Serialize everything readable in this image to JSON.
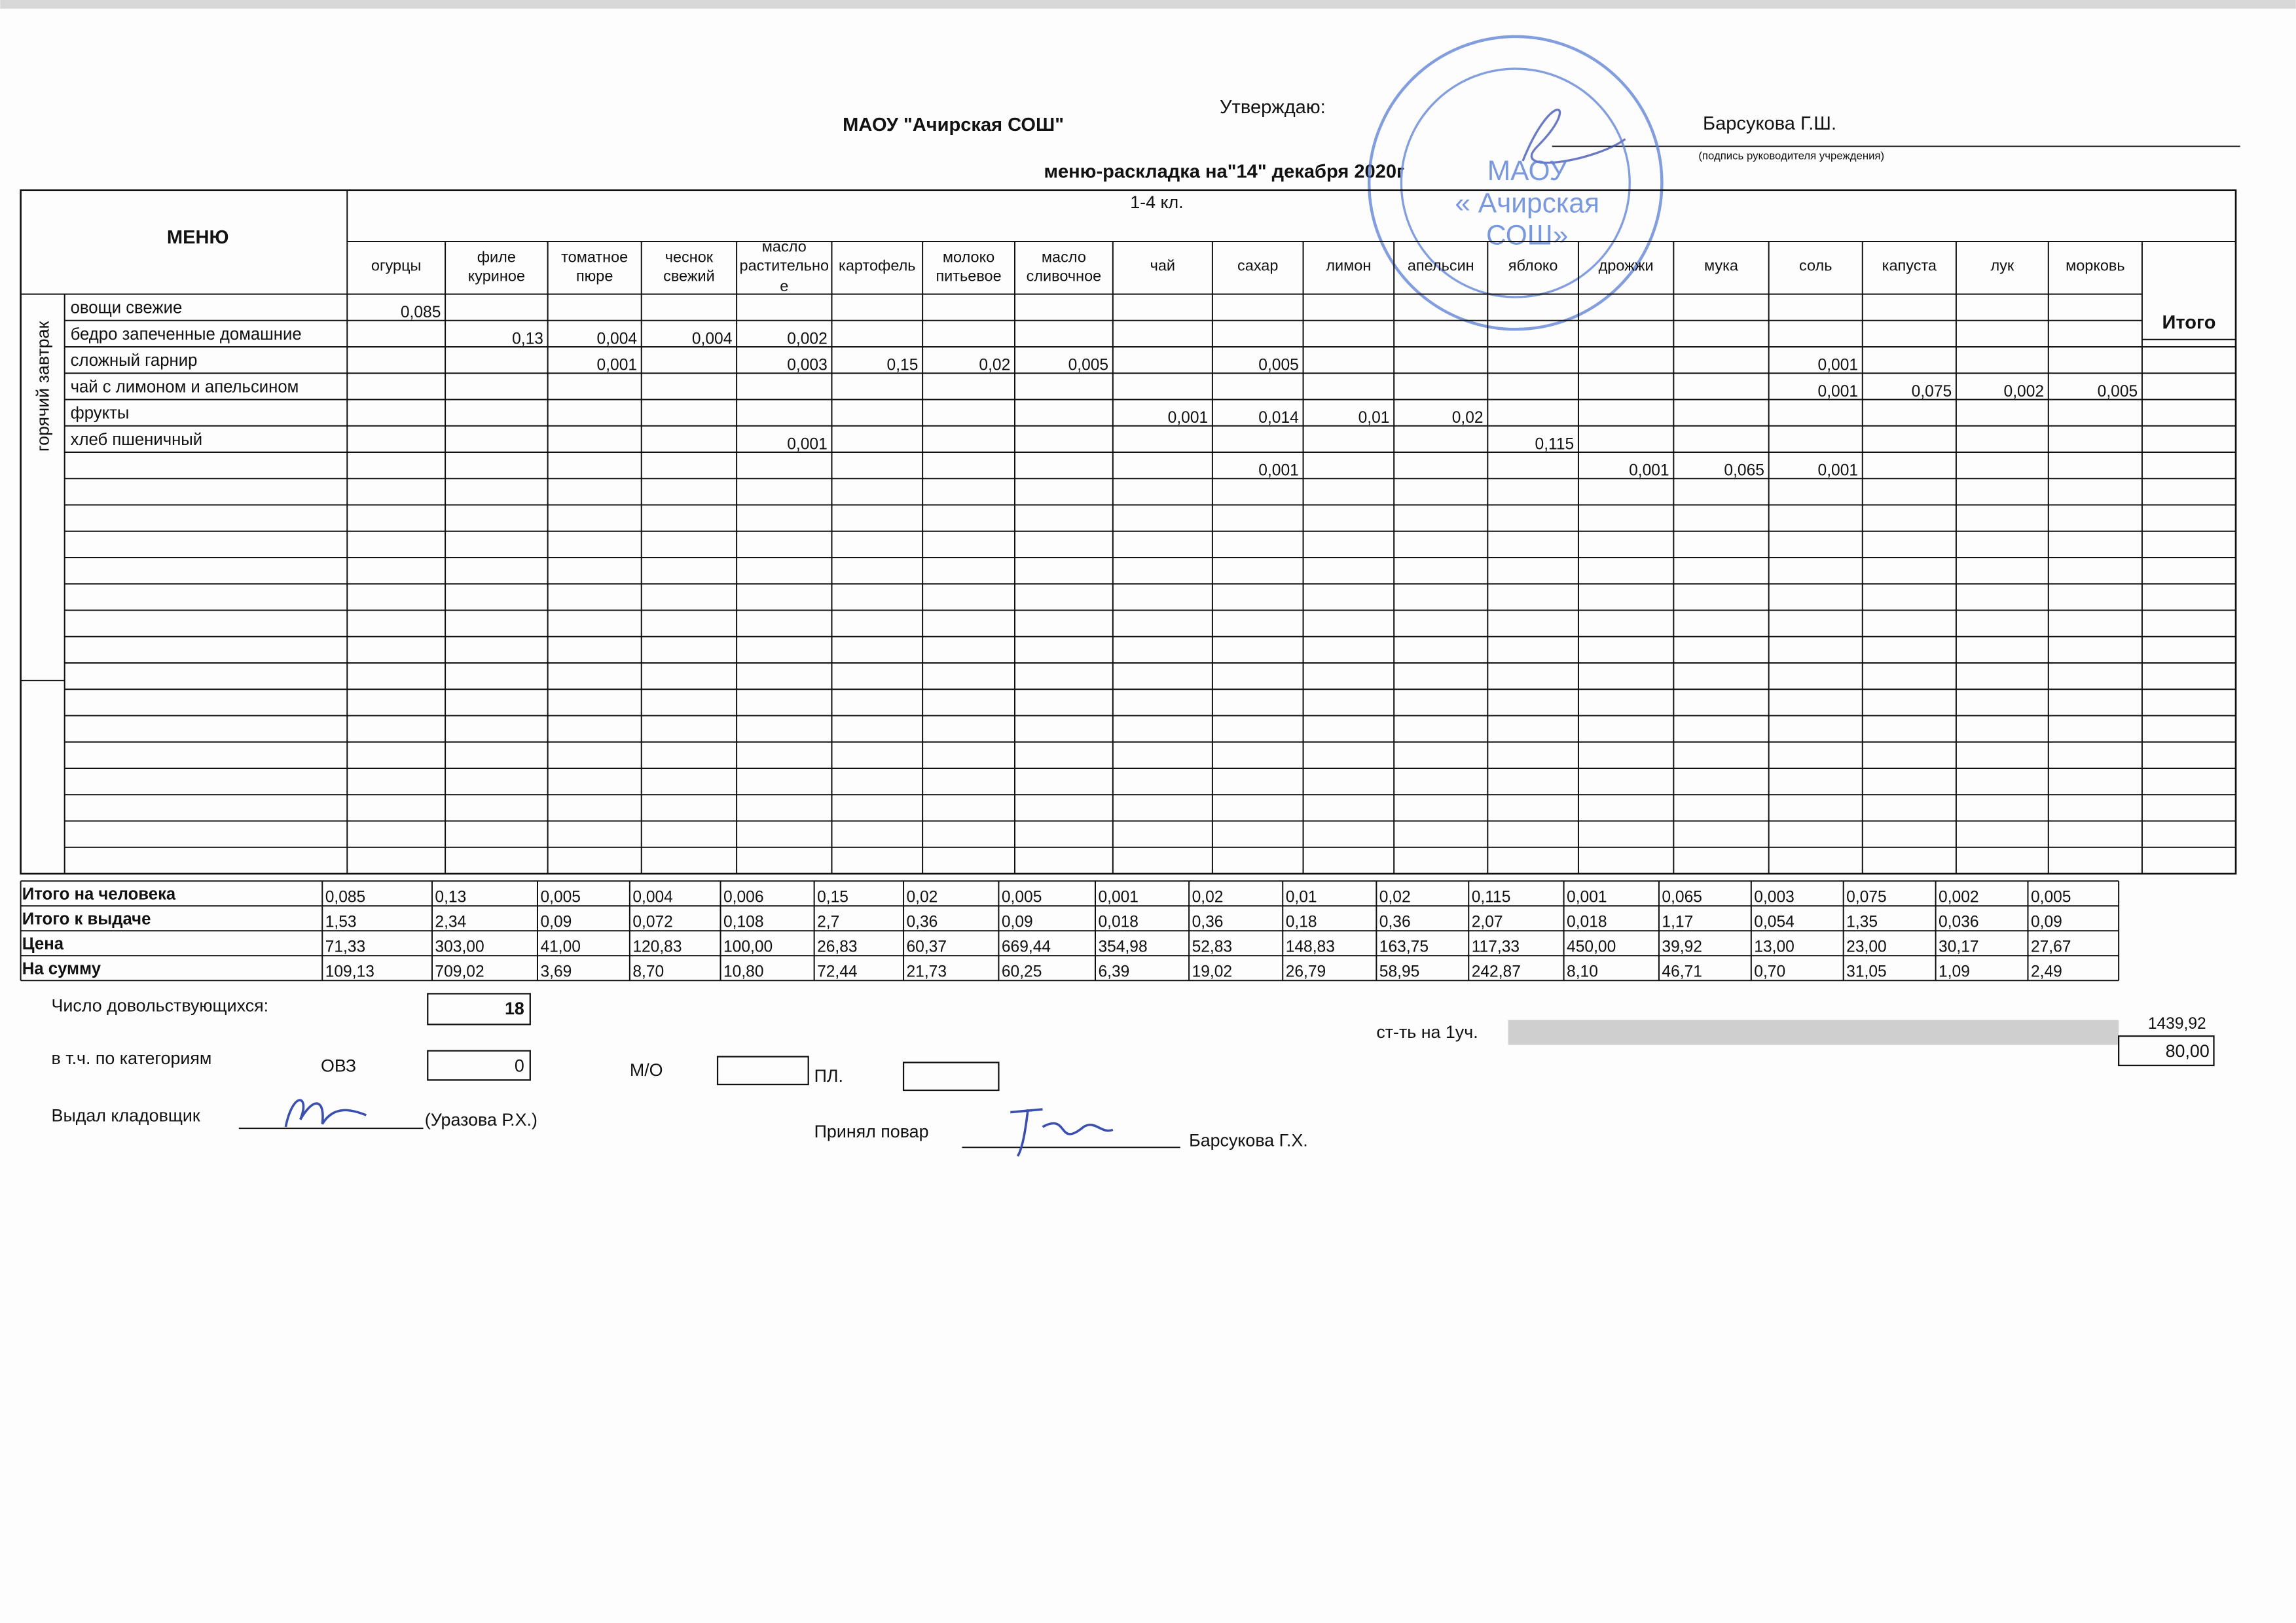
{
  "header": {
    "organization": "МАОУ \"Ачирская СОШ\"",
    "approve_label": "Утверждаю:",
    "approver": "Барсукова Г.Ш.",
    "approver_note": "(подпись руководителя учреждения)",
    "title": "меню-раскладка на\"14\" декабря 2020г",
    "grade": "1-4 кл."
  },
  "stamp": {
    "lines": [
      "МАОУ",
      "« Ачирская",
      "СОШ»"
    ]
  },
  "table": {
    "menu_header": "МЕНЮ",
    "total_header": "Итого",
    "columns": [
      "огурцы",
      "филе куриное",
      "томатное пюре",
      "чеснок свежий",
      "масло растительное",
      "картофель",
      "молоко питьевое",
      "масло сливочное",
      "чай",
      "сахар",
      "лимон",
      "апельсин",
      "яблоко",
      "дрожжи",
      "мука",
      "соль",
      "капуста",
      "лук",
      "морковь"
    ],
    "meal": "горячий завтрак",
    "rows": [
      {
        "name": "овощи свежие",
        "cells": [
          "0,085",
          null,
          null,
          null,
          null,
          null,
          null,
          null,
          null,
          null,
          null,
          null,
          null,
          null,
          null,
          null,
          null,
          null,
          null
        ]
      },
      {
        "name": "бедро запеченные домашние",
        "cells": [
          null,
          "0,13",
          "0,004",
          "0,004",
          "0,002",
          null,
          null,
          null,
          null,
          null,
          null,
          null,
          null,
          null,
          null,
          null,
          null,
          null,
          null
        ]
      },
      {
        "name": "сложный гарнир",
        "cells": [
          null,
          null,
          "0,001",
          null,
          "0,003",
          "0,15",
          "0,02",
          "0,005",
          null,
          "0,005",
          null,
          null,
          null,
          null,
          null,
          "0,001",
          null,
          null,
          null
        ]
      },
      {
        "name": "чай с лимоном и апельсином",
        "cells": [
          null,
          null,
          null,
          null,
          null,
          null,
          null,
          null,
          null,
          null,
          null,
          null,
          null,
          null,
          null,
          "0,001",
          "0,075",
          "0,002",
          "0,005"
        ]
      },
      {
        "name": "фрукты",
        "cells": [
          null,
          null,
          null,
          null,
          null,
          null,
          null,
          null,
          "0,001",
          "0,014",
          "0,01",
          "0,02",
          null,
          null,
          null,
          null,
          null,
          null,
          null
        ]
      },
      {
        "name": "хлеб пшеничный",
        "cells": [
          null,
          null,
          null,
          null,
          "0,001",
          null,
          null,
          null,
          null,
          null,
          null,
          null,
          "0,115",
          null,
          null,
          null,
          null,
          null,
          null
        ]
      },
      {
        "name": null,
        "cells": [
          null,
          null,
          null,
          null,
          null,
          null,
          null,
          null,
          null,
          "0,001",
          null,
          null,
          null,
          "0,001",
          "0,065",
          "0,001",
          null,
          null,
          null
        ]
      }
    ],
    "summary": [
      {
        "label": "Итого на человека",
        "values": [
          "0,085",
          "0,13",
          "0,005",
          "0,004",
          "0,006",
          "0,15",
          "0,02",
          "0,005",
          "0,001",
          "0,02",
          "0,01",
          "0,02",
          "0,115",
          "0,001",
          "0,065",
          "0,003",
          "0,075",
          "0,002",
          "0,005"
        ]
      },
      {
        "label": "Итого к выдаче",
        "values": [
          "1,53",
          "2,34",
          "0,09",
          "0,072",
          "0,108",
          "2,7",
          "0,36",
          "0,09",
          "0,018",
          "0,36",
          "0,18",
          "0,36",
          "2,07",
          "0,018",
          "1,17",
          "0,054",
          "1,35",
          "0,036",
          "0,09"
        ]
      },
      {
        "label": "Цена",
        "values": [
          "71,33",
          "303,00",
          "41,00",
          "120,83",
          "100,00",
          "26,83",
          "60,37",
          "669,44",
          "354,98",
          "52,83",
          "148,83",
          "163,75",
          "117,33",
          "450,00",
          "39,92",
          "13,00",
          "23,00",
          "30,17",
          "27,67"
        ]
      },
      {
        "label": "На сумму",
        "values": [
          "109,13",
          "709,02",
          "3,69",
          "8,70",
          "10,80",
          "72,44",
          "21,73",
          "60,25",
          "6,39",
          "19,02",
          "26,79",
          "58,95",
          "242,87",
          "8,10",
          "46,71",
          "0,70",
          "31,05",
          "1,09",
          "2,49"
        ]
      }
    ],
    "grand_total": "1439,92"
  },
  "footer": {
    "served_label": "Число довольствующихся:",
    "served": "18",
    "per_child_label": "ст-ть на 1уч.",
    "per_child": "80,00",
    "categories_label": "в т.ч. по категориям",
    "ovz_label": "ОВЗ",
    "ovz": "0",
    "mo_label": "М/О",
    "pl_label": "ПЛ.",
    "issued_label": "Выдал кладовщик",
    "issued_by": "(Уразова Р.Х.)",
    "received_label": "Принял повар",
    "received_by": "Барсукова Г.Х."
  }
}
